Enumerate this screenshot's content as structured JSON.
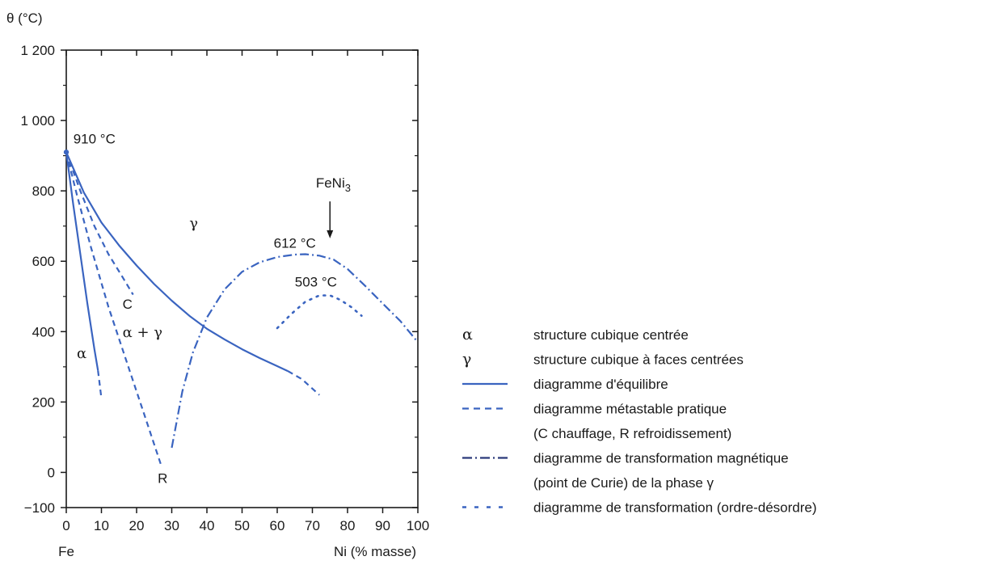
{
  "chart_data": {
    "type": "line",
    "ylabel": "θ (°C)",
    "xlabel_left": "Fe",
    "xlabel": "Ni (% masse)",
    "xlim": [
      0,
      100
    ],
    "ylim": [
      -100,
      1200
    ],
    "xticks": [
      "0",
      "10",
      "20",
      "30",
      "40",
      "50",
      "60",
      "70",
      "80",
      "90",
      "100"
    ],
    "yticks": [
      "−100",
      "0",
      "200",
      "400",
      "600",
      "800",
      "1 000",
      "1 200"
    ],
    "colors": {
      "curve": "#3a64c0",
      "text": "#1a1a1a",
      "dark": "#2b3a7a"
    },
    "series": [
      {
        "kind": "equilibrium",
        "style": "solid",
        "points": [
          [
            0,
            910
          ],
          [
            5,
            795
          ],
          [
            10,
            710
          ],
          [
            15,
            645
          ],
          [
            20,
            588
          ],
          [
            25,
            535
          ],
          [
            30,
            488
          ],
          [
            35,
            445
          ],
          [
            40,
            408
          ],
          [
            45,
            378
          ],
          [
            50,
            350
          ],
          [
            55,
            325
          ],
          [
            60,
            302
          ],
          [
            63,
            288
          ]
        ]
      },
      {
        "kind": "equilibrium",
        "style": "solid",
        "points": [
          [
            0,
            910
          ],
          [
            2,
            760
          ],
          [
            4,
            620
          ],
          [
            6,
            480
          ],
          [
            8,
            350
          ],
          [
            9,
            290
          ]
        ]
      },
      {
        "kind": "metastable",
        "style": "dashed",
        "points": [
          [
            63,
            288
          ],
          [
            67,
            265
          ],
          [
            72,
            220
          ]
        ]
      },
      {
        "kind": "metastable",
        "style": "dashed",
        "points": [
          [
            9,
            290
          ],
          [
            10,
            210
          ]
        ]
      },
      {
        "kind": "metastable",
        "style": "dashed",
        "points": [
          [
            0,
            910
          ],
          [
            4,
            800
          ],
          [
            8,
            700
          ],
          [
            12,
            620
          ],
          [
            16,
            555
          ],
          [
            19,
            505
          ]
        ]
      },
      {
        "kind": "metastable",
        "style": "dashed",
        "points": [
          [
            0,
            910
          ],
          [
            3,
            790
          ],
          [
            7,
            640
          ],
          [
            12,
            470
          ],
          [
            17,
            320
          ],
          [
            22,
            170
          ],
          [
            27,
            20
          ]
        ]
      },
      {
        "kind": "magnetic",
        "style": "dashdot",
        "points": [
          [
            30,
            70
          ],
          [
            33,
            230
          ],
          [
            36,
            340
          ],
          [
            40,
            440
          ],
          [
            45,
            520
          ],
          [
            50,
            570
          ],
          [
            55,
            597
          ],
          [
            60,
            612
          ],
          [
            65,
            619
          ],
          [
            68,
            620
          ],
          [
            72,
            616
          ],
          [
            76,
            605
          ],
          [
            80,
            578
          ],
          [
            85,
            530
          ],
          [
            90,
            480
          ],
          [
            95,
            430
          ],
          [
            100,
            370
          ]
        ]
      },
      {
        "kind": "order-disorder",
        "style": "dotted",
        "points": [
          [
            60,
            410
          ],
          [
            64,
            450
          ],
          [
            68,
            485
          ],
          [
            72,
            503
          ],
          [
            75,
            503
          ],
          [
            78,
            490
          ],
          [
            81,
            470
          ],
          [
            84,
            445
          ]
        ]
      }
    ],
    "annotations": [
      {
        "text": "910 °C",
        "x": 2,
        "y": 935
      },
      {
        "text": "FeNi",
        "sub": "3",
        "x": 71,
        "y": 810
      },
      {
        "text": "612 °C",
        "x": 59,
        "y": 638
      },
      {
        "text": "503 °C",
        "x": 65,
        "y": 528
      },
      {
        "text": "γ",
        "x": 35,
        "y": 695,
        "greek": true
      },
      {
        "text": "C",
        "x": 16,
        "y": 465
      },
      {
        "text": "α + γ",
        "x": 16,
        "y": 385,
        "greek": true
      },
      {
        "text": "α",
        "x": 3,
        "y": 325,
        "greek": true
      },
      {
        "text": "R",
        "x": 26,
        "y": -30
      }
    ],
    "arrow": {
      "x": 75,
      "y_from": 770,
      "y_to": 665
    }
  },
  "legend": [
    {
      "symbol": "α",
      "type": "glyph",
      "label": "structure cubique centrée"
    },
    {
      "symbol": "γ",
      "type": "glyph",
      "label": "structure cubique à faces centrées"
    },
    {
      "symbol": "",
      "type": "solid",
      "label": "diagramme d'équilibre"
    },
    {
      "symbol": "",
      "type": "dashed",
      "label": "diagramme métastable pratique"
    },
    {
      "symbol": "",
      "type": "none",
      "label": "(C chauffage, R refroidissement)"
    },
    {
      "symbol": "",
      "type": "dashdot",
      "label": "diagramme de transformation magnétique"
    },
    {
      "symbol": "",
      "type": "none",
      "label": "(point de Curie) de la phase γ"
    },
    {
      "symbol": "",
      "type": "dotted",
      "label": "diagramme de transformation (ordre-désordre)"
    }
  ]
}
